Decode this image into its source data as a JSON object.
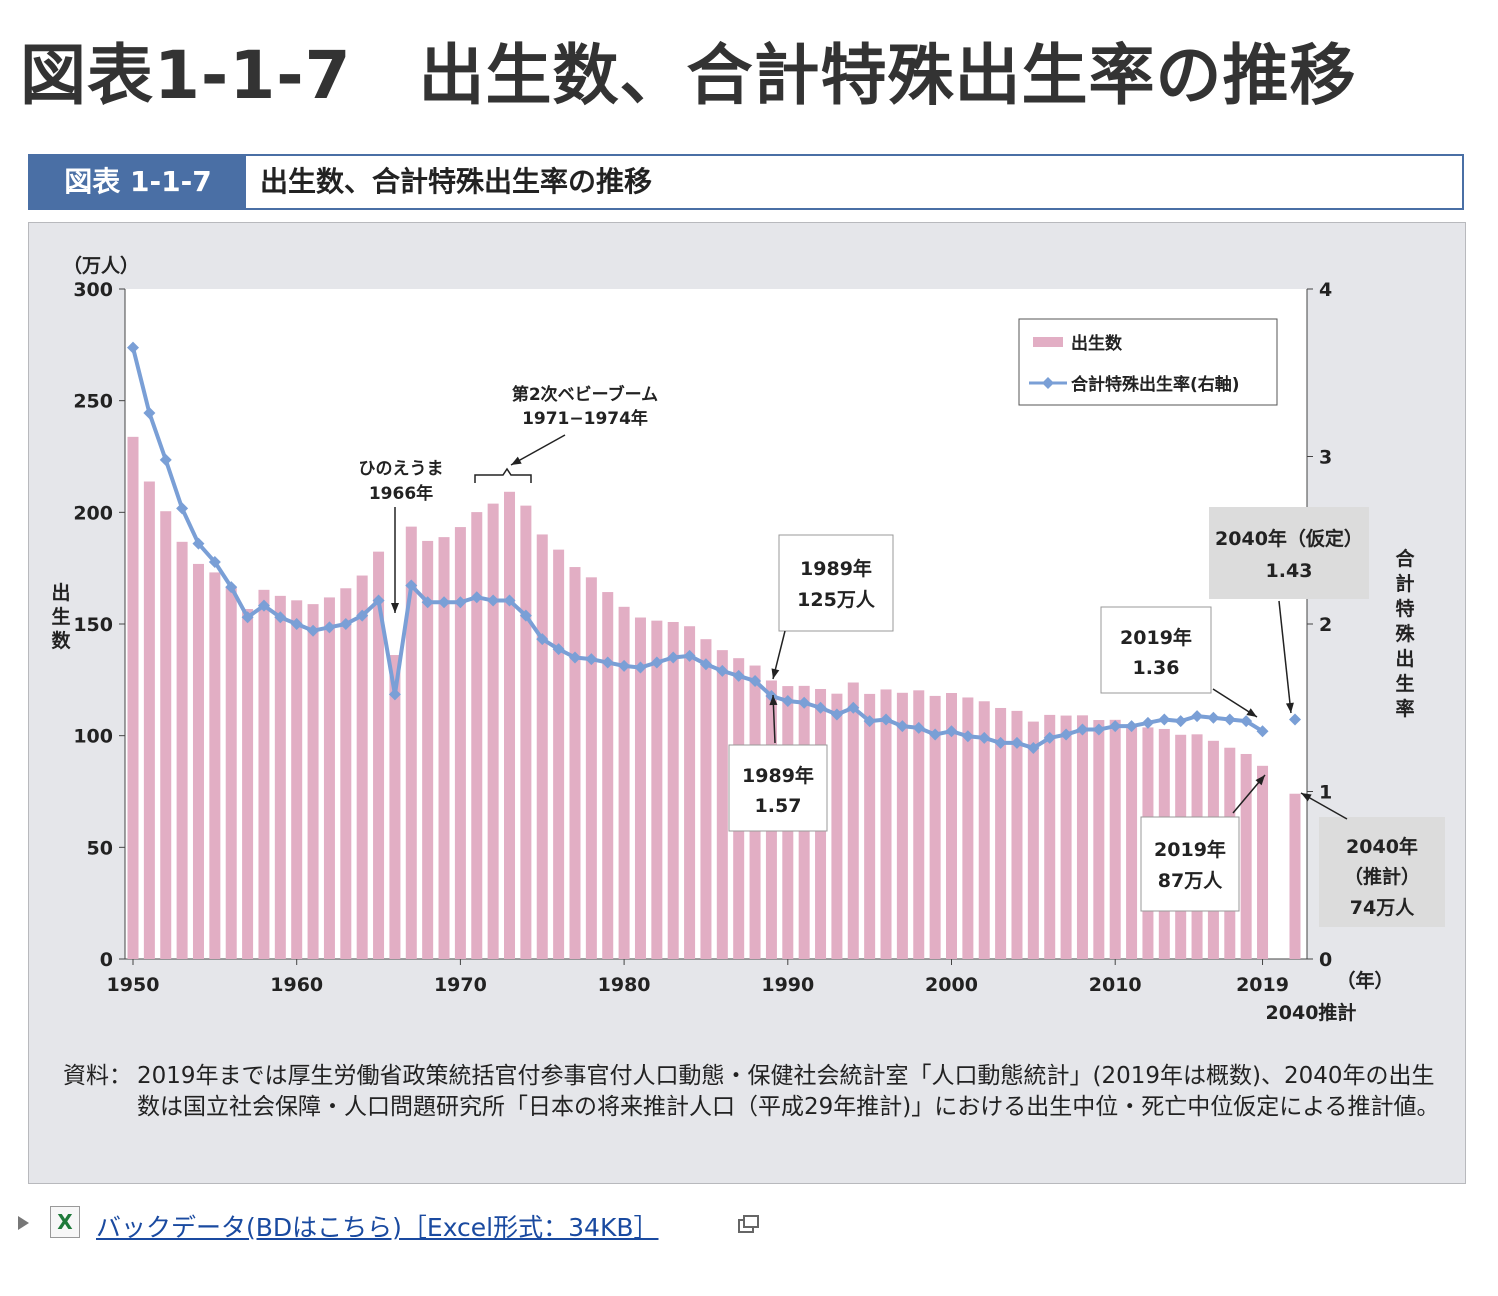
{
  "page": {
    "title": "図表1-1-7　出生数、合計特殊出生率の推移",
    "figure_number": "図表 1-1-7",
    "figure_title": "出生数、合計特殊出生率の推移",
    "source_label": "資料：",
    "source_text": "2019年までは厚生労働省政策統括官付参事官付人口動態・保健社会統計室「人口動態統計」(2019年は概数)、2040年の出生数は国立社会保障・人口問題研究所「日本の将来推計人口（平成29年推計)」における出生中位・死亡中位仮定による推計値。",
    "link_text": "バックデータ(BDはこちら)［Excel形式：34KB］",
    "link_icon": "excel-icon",
    "external_icon": "external-window-icon"
  },
  "chart_data": {
    "type": "bar+line",
    "x": [
      1950,
      1951,
      1952,
      1953,
      1954,
      1955,
      1956,
      1957,
      1958,
      1959,
      1960,
      1961,
      1962,
      1963,
      1964,
      1965,
      1966,
      1967,
      1968,
      1969,
      1970,
      1971,
      1972,
      1973,
      1974,
      1975,
      1976,
      1977,
      1978,
      1979,
      1980,
      1981,
      1982,
      1983,
      1984,
      1985,
      1986,
      1987,
      1988,
      1989,
      1990,
      1991,
      1992,
      1993,
      1994,
      1995,
      1996,
      1997,
      1998,
      1999,
      2000,
      2001,
      2002,
      2003,
      2004,
      2005,
      2006,
      2007,
      2008,
      2009,
      2010,
      2011,
      2012,
      2013,
      2014,
      2015,
      2016,
      2017,
      2018,
      2019
    ],
    "series": [
      {
        "name": "出生数",
        "kind": "bar",
        "axis": "left",
        "values": [
          233.8,
          213.8,
          200.5,
          186.8,
          176.9,
          173.1,
          166.5,
          156.7,
          165.3,
          162.6,
          160.6,
          158.9,
          161.9,
          166.0,
          171.7,
          182.4,
          136.1,
          193.6,
          187.2,
          188.9,
          193.4,
          200.1,
          203.9,
          209.2,
          203.0,
          190.1,
          183.3,
          175.5,
          170.9,
          164.3,
          157.7,
          152.9,
          151.5,
          150.9,
          149.0,
          143.2,
          138.3,
          134.7,
          131.4,
          124.7,
          122.2,
          122.3,
          120.9,
          118.8,
          123.8,
          118.7,
          120.7,
          119.2,
          120.3,
          117.8,
          119.1,
          117.1,
          115.4,
          112.4,
          111.1,
          106.3,
          109.3,
          109.0,
          109.1,
          107.0,
          107.1,
          105.1,
          103.7,
          103.0,
          100.4,
          100.6,
          97.7,
          94.6,
          91.8,
          86.5
        ]
      },
      {
        "name": "合計特殊出生率(右軸)",
        "kind": "line",
        "axis": "right",
        "values": [
          3.65,
          3.26,
          2.98,
          2.69,
          2.48,
          2.37,
          2.22,
          2.04,
          2.11,
          2.04,
          2.0,
          1.96,
          1.98,
          2.0,
          2.05,
          2.14,
          1.58,
          2.23,
          2.13,
          2.13,
          2.13,
          2.16,
          2.14,
          2.14,
          2.05,
          1.91,
          1.85,
          1.8,
          1.79,
          1.77,
          1.75,
          1.74,
          1.77,
          1.8,
          1.81,
          1.76,
          1.72,
          1.69,
          1.66,
          1.57,
          1.54,
          1.53,
          1.5,
          1.46,
          1.5,
          1.42,
          1.43,
          1.39,
          1.38,
          1.34,
          1.36,
          1.33,
          1.32,
          1.29,
          1.29,
          1.26,
          1.32,
          1.34,
          1.37,
          1.37,
          1.39,
          1.39,
          1.41,
          1.43,
          1.42,
          1.45,
          1.44,
          1.43,
          1.42,
          1.36
        ]
      }
    ],
    "projection": {
      "x_label": "2040推計",
      "births": 74,
      "tfr": 1.43
    },
    "y_left": {
      "label": "出生数",
      "unit": "（万人）",
      "ylim": [
        0,
        300
      ],
      "ticks": [
        0,
        50,
        100,
        150,
        200,
        250,
        300
      ]
    },
    "y_right": {
      "label": "合計特殊出生率",
      "ylim": [
        0,
        4
      ],
      "ticks": [
        0,
        1,
        2,
        3,
        4
      ]
    },
    "x_ticks": [
      "1950",
      "1960",
      "1970",
      "1980",
      "1990",
      "2000",
      "2010",
      "2019"
    ],
    "x_unit": "（年）",
    "legend": {
      "position": "top-right",
      "items": [
        "出生数",
        "合計特殊出生率(右軸)"
      ]
    },
    "annotations": {
      "boom": [
        "第2次ベビーブーム",
        "1971−1974年"
      ],
      "hinoeuma": [
        "ひのえうま",
        "1966年"
      ],
      "b1989": [
        "1989年",
        "125万人"
      ],
      "t1989": [
        "1989年",
        "1.57"
      ],
      "t2019": [
        "2019年",
        "1.36"
      ],
      "b2019": [
        "2019年",
        "87万人"
      ],
      "t2040": [
        "2040年（仮定）",
        "1.43"
      ],
      "b2040": [
        "2040年",
        "（推計）",
        "74万人"
      ]
    },
    "colors": {
      "bar": "#e2aec4",
      "line": "#7a9fd6",
      "marker": "#7a9fd6",
      "plot_bg": "#ffffff",
      "panel_bg": "#e5e6ea"
    }
  }
}
